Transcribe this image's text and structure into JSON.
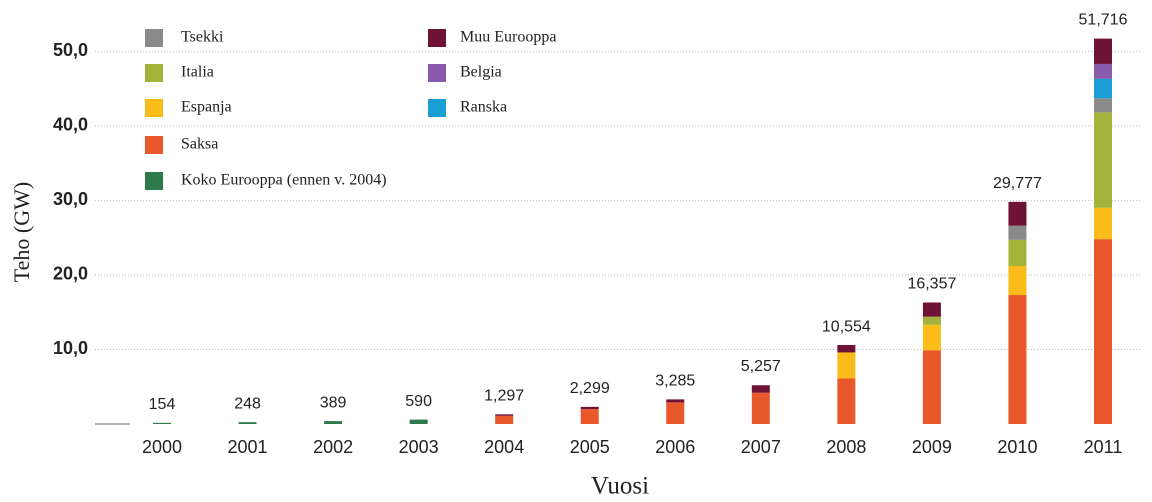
{
  "chart_data": {
    "type": "stacked_bar",
    "x_label": "Vuosi",
    "y_label": "Teho (GW)",
    "categories": [
      "2000",
      "2001",
      "2002",
      "2003",
      "2004",
      "2005",
      "2006",
      "2007",
      "2008",
      "2009",
      "2010",
      "2011"
    ],
    "series": [
      {
        "name": "Koko Eurooppa (ennen v. 2004)",
        "color": "#2e7a4a",
        "values": [
          0.154,
          0.248,
          0.389,
          0.59,
          null,
          null,
          null,
          null,
          null,
          null,
          null,
          null
        ]
      },
      {
        "name": "Saksa",
        "color": "#e8582a",
        "values": [
          null,
          null,
          null,
          null,
          1.1,
          2.0,
          2.9,
          4.2,
          6.1,
          9.9,
          17.3,
          24.8
        ]
      },
      {
        "name": "Espanja",
        "color": "#fbbc1a",
        "values": [
          null,
          null,
          null,
          null,
          null,
          null,
          null,
          null,
          3.5,
          3.4,
          3.9,
          4.2
        ]
      },
      {
        "name": "Italia",
        "color": "#a3b23a",
        "values": [
          null,
          null,
          null,
          null,
          null,
          null,
          null,
          null,
          null,
          1.1,
          3.5,
          12.8
        ]
      },
      {
        "name": "Tsekki",
        "color": "#8a8a8a",
        "values": [
          null,
          null,
          null,
          null,
          null,
          null,
          null,
          null,
          null,
          null,
          1.9,
          1.9
        ]
      },
      {
        "name": "Ranska",
        "color": "#1a9ed4",
        "values": [
          null,
          null,
          null,
          null,
          null,
          null,
          null,
          null,
          null,
          null,
          null,
          2.6
        ]
      },
      {
        "name": "Belgia",
        "color": "#8a5aad",
        "values": [
          null,
          null,
          null,
          null,
          null,
          null,
          null,
          null,
          null,
          null,
          null,
          2.0
        ]
      },
      {
        "name": "Muu Eurooppa",
        "color": "#6e1236",
        "values": [
          null,
          null,
          null,
          null,
          0.2,
          0.3,
          0.4,
          1.0,
          1.0,
          1.9,
          3.2,
          3.4
        ]
      }
    ],
    "totals": {
      "values": [
        0.154,
        0.248,
        0.389,
        0.59,
        1.297,
        2.299,
        3.285,
        5.257,
        10.554,
        16.357,
        29.777,
        51.716
      ],
      "value_labels": [
        "154",
        "248",
        "389",
        "590",
        "1,297",
        "2,299",
        "3,285",
        "5,257",
        "10,554",
        "16,357",
        "29,777",
        "51,716"
      ]
    },
    "ylim": [
      0,
      55
    ],
    "yticks": [
      {
        "value": 10,
        "label": "10,0"
      },
      {
        "value": 20,
        "label": "20,0"
      },
      {
        "value": 30,
        "label": "30,0"
      },
      {
        "value": 40,
        "label": "40,0"
      },
      {
        "value": 50,
        "label": "50,0"
      }
    ],
    "grid": true
  }
}
